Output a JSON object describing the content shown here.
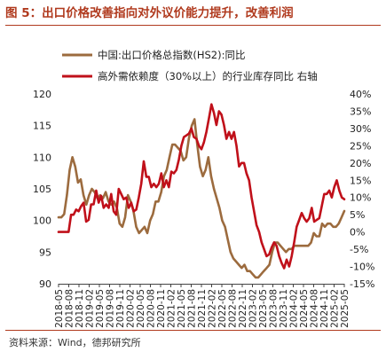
{
  "figure": {
    "title": "图 5：出口价格改善指向对外议价能力提升，改善利润",
    "source": "资料来源：Wind，德邦研究所"
  },
  "colors": {
    "title": "#b03a1e",
    "series_brown": "#9c6b3e",
    "series_red": "#c0101a"
  },
  "chart_data": {
    "type": "line",
    "legend_position": "top-left",
    "grid": false,
    "x_tick_labels": [
      "2018-05",
      "2018-08",
      "2018-11",
      "2019-02",
      "2019-05",
      "2019-08",
      "2019-11",
      "2020-02",
      "2020-05",
      "2020-08",
      "2020-11",
      "2021-02",
      "2021-05",
      "2021-08",
      "2021-11",
      "2022-02",
      "2022-05",
      "2022-08",
      "2022-11",
      "2023-02",
      "2023-05",
      "2023-08",
      "2023-11",
      "2024-02",
      "2024-05",
      "2024-08",
      "2024-11",
      "2025-02",
      "2025-05"
    ],
    "x_start": "2018-05",
    "y_left": {
      "lim": [
        90,
        120
      ],
      "ticks": [
        90,
        95,
        100,
        105,
        110,
        115,
        120
      ]
    },
    "y_right": {
      "lim": [
        -15,
        40
      ],
      "ticks": [
        -15,
        -10,
        -5,
        0,
        5,
        10,
        15,
        20,
        25,
        30,
        35,
        40
      ],
      "tick_labels": [
        "-15%",
        "-10%",
        "-5%",
        "0%",
        "5%",
        "10%",
        "15%",
        "20%",
        "25%",
        "30%",
        "35%",
        "40%"
      ]
    },
    "series": [
      {
        "name": "中国:出口价格总指数(HS2):同比",
        "axis": "left",
        "values": [
          100.5,
          100.5,
          101,
          104,
          108,
          110,
          108.5,
          106,
          106.5,
          104,
          102.5,
          104,
          105,
          104.5,
          103.5,
          104,
          103.5,
          104.5,
          103,
          102.5,
          103,
          102,
          99.5,
          99,
          100.5,
          104,
          103,
          101.5,
          99,
          98,
          98.5,
          99,
          98,
          100,
          101,
          103,
          103,
          104.5,
          107,
          108,
          110,
          112,
          112,
          111.5,
          111,
          109.5,
          110,
          113,
          115,
          116,
          112,
          108.5,
          107,
          108,
          110,
          107,
          105,
          103.5,
          102,
          100,
          99,
          97,
          95,
          94,
          93.5,
          93,
          92.5,
          93,
          92,
          92,
          91.5,
          91,
          91,
          91.5,
          92,
          92.5,
          93,
          95,
          96.5,
          96.5,
          96,
          95.5,
          95,
          95.5,
          95.5,
          96,
          96,
          96,
          96,
          96,
          96,
          96.5,
          98,
          97.5,
          97.5,
          99.5,
          99,
          99.5,
          99.5,
          99,
          99,
          99.5,
          100.5,
          101.5
        ]
      },
      {
        "name": "高外需依赖度（30%以上）的行业库存同比  右轴",
        "axis": "right",
        "values": [
          0,
          0,
          0,
          0,
          0,
          5,
          5,
          6.5,
          6,
          7.5,
          8.5,
          3,
          3.5,
          8,
          8,
          12,
          8.5,
          10.5,
          7,
          8,
          7,
          11,
          6,
          5,
          12.5,
          11,
          9.5,
          10,
          7,
          8.5,
          6,
          6.5,
          10,
          14,
          20.5,
          16,
          16,
          13,
          14,
          13,
          14,
          17,
          13,
          15,
          13,
          17.5,
          17,
          18,
          21,
          25,
          27.5,
          28,
          28.5,
          30,
          27.5,
          27,
          25,
          24,
          26,
          29,
          33,
          37,
          34.5,
          31,
          35,
          34,
          31,
          27,
          29,
          27,
          29,
          25,
          19,
          20,
          20,
          17,
          15,
          10,
          6,
          2,
          0,
          -3,
          -5,
          -7,
          -6.5,
          -4.5,
          -3,
          -4,
          -7,
          -9,
          -10.5,
          -8,
          -10,
          -7,
          -3,
          1.5,
          3.5,
          5.5,
          4,
          3,
          4,
          7,
          3,
          3.5,
          4,
          7.5,
          11,
          11,
          12,
          10,
          13,
          15,
          12,
          10,
          9.5
        ]
      }
    ]
  }
}
